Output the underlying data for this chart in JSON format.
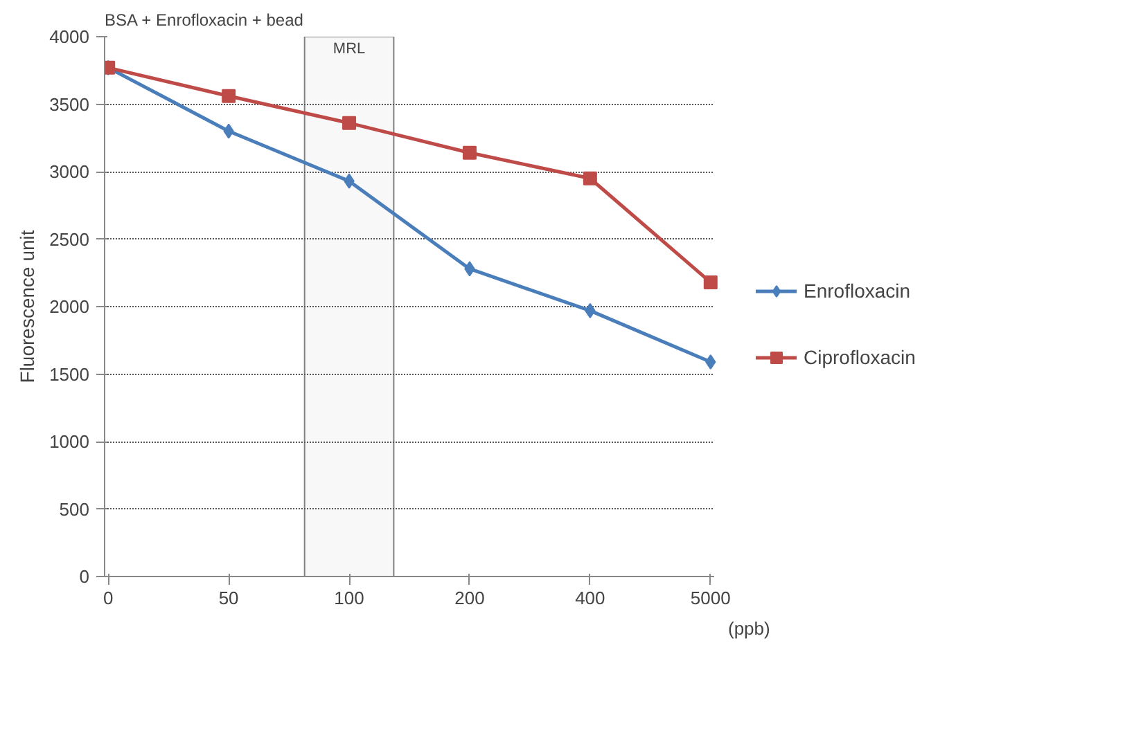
{
  "chart_data": {
    "type": "line",
    "title": "BSA + Enrofloxacin + bead",
    "xlabel": "(ppb)",
    "ylabel": "Fluorescence unit",
    "categories": [
      "0",
      "50",
      "100",
      "200",
      "400",
      "5000"
    ],
    "series": [
      {
        "name": "Enrofloxacin",
        "color": "#4a7ebb",
        "marker": "diamond",
        "values": [
          3770,
          3300,
          2930,
          2280,
          1970,
          1590
        ]
      },
      {
        "name": "Ciprofloxacin",
        "color": "#be4b48",
        "marker": "square",
        "values": [
          3770,
          3560,
          3360,
          3140,
          2950,
          2180
        ]
      }
    ],
    "bands": [
      {
        "axis": "x",
        "from": "100",
        "to": "100",
        "label": "MRL",
        "color": "#808080"
      }
    ],
    "ylim": [
      0,
      4000
    ],
    "yticks": [
      0,
      500,
      1000,
      1500,
      2000,
      2500,
      3000,
      3500,
      4000
    ],
    "grid": "y",
    "legend": "right",
    "line_style": "solid"
  }
}
